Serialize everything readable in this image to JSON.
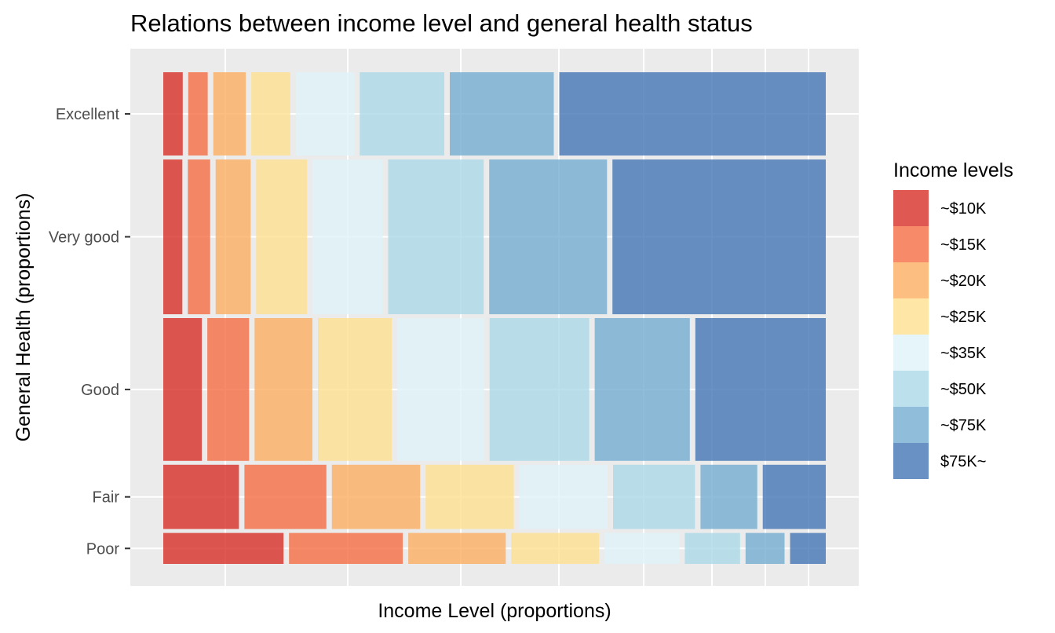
{
  "chart_data": {
    "type": "mosaic",
    "title": "Relations between income level and general health status",
    "xlabel": "Income Level (proportions)",
    "ylabel": "General Health (proportions)",
    "legend": {
      "title": "Income levels",
      "position": "right"
    },
    "income_levels": [
      "~$10K",
      "~$15K",
      "~$20K",
      "~$25K",
      "~$35K",
      "~$50K",
      "~$75K",
      "$75K~"
    ],
    "colors": [
      "#d73027",
      "#f46d43",
      "#fdae61",
      "#fee090",
      "#e0f3f8",
      "#abd9e9",
      "#74add1",
      "#4575b4"
    ],
    "health_levels": [
      "Excellent",
      "Very good",
      "Good",
      "Fair",
      "Poor"
    ],
    "health_proportions": [
      0.175,
      0.325,
      0.3,
      0.135,
      0.065
    ],
    "income_proportions_by_health": {
      "Excellent": [
        0.03,
        0.03,
        0.05,
        0.06,
        0.09,
        0.13,
        0.16,
        0.41
      ],
      "Very good": [
        0.03,
        0.035,
        0.055,
        0.08,
        0.11,
        0.15,
        0.185,
        0.335
      ],
      "Good": [
        0.06,
        0.065,
        0.09,
        0.115,
        0.135,
        0.155,
        0.148,
        0.203
      ],
      "Fair": [
        0.12,
        0.13,
        0.14,
        0.14,
        0.14,
        0.13,
        0.09,
        0.1
      ],
      "Poor": [
        0.185,
        0.175,
        0.15,
        0.135,
        0.115,
        0.085,
        0.06,
        0.055
      ]
    },
    "grid": true
  }
}
